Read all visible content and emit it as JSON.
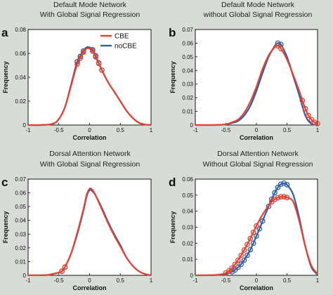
{
  "colors": {
    "cbe": "#e8412e",
    "nocbe": "#2f5fa6",
    "background": "#d8dcd7"
  },
  "chart_data": [
    {
      "type": "line",
      "panel_label": "a",
      "title": [
        "Default Mode Network",
        "With Global Signal Regression"
      ],
      "xlabel": "Correlation",
      "ylabel": "Frequency",
      "xlim": [
        -1,
        1
      ],
      "ylim": [
        0,
        0.08
      ],
      "xticks": [
        "-1",
        "-0.5",
        "0",
        "0.5",
        "1"
      ],
      "yticks": [
        "0",
        "0.02",
        "0.04",
        "0.06",
        "0.08"
      ],
      "legend": {
        "position": "top-right",
        "entries": [
          "CBE",
          "noCBE"
        ]
      },
      "series": [
        {
          "name": "CBE",
          "x": [
            -1,
            -0.8,
            -0.6,
            -0.5,
            -0.4,
            -0.3,
            -0.2,
            -0.1,
            -0.05,
            0,
            0.05,
            0.1,
            0.2,
            0.3,
            0.4,
            0.5,
            0.6,
            0.7,
            0.8,
            0.9,
            1
          ],
          "y": [
            0,
            0,
            0.001,
            0.005,
            0.015,
            0.033,
            0.051,
            0.061,
            0.064,
            0.064,
            0.062,
            0.057,
            0.046,
            0.036,
            0.028,
            0.02,
            0.012,
            0.006,
            0.002,
            0.0005,
            0
          ],
          "markers_x": [
            -0.2,
            -0.15,
            -0.1,
            0.05,
            0.1,
            0.15,
            0.2
          ]
        },
        {
          "name": "noCBE",
          "x": [
            -1,
            -0.8,
            -0.6,
            -0.5,
            -0.4,
            -0.3,
            -0.2,
            -0.1,
            -0.05,
            0,
            0.05,
            0.1,
            0.2,
            0.3,
            0.4,
            0.5,
            0.6,
            0.7,
            0.8,
            0.9,
            1
          ],
          "y": [
            0,
            0,
            0.001,
            0.005,
            0.015,
            0.034,
            0.053,
            0.062,
            0.065,
            0.065,
            0.063,
            0.058,
            0.046,
            0.036,
            0.028,
            0.02,
            0.012,
            0.006,
            0.002,
            0.0005,
            0
          ],
          "markers_x": [
            -0.2,
            -0.15,
            -0.1,
            0.05,
            0.1,
            0.15,
            0.2
          ]
        }
      ]
    },
    {
      "type": "line",
      "panel_label": "b",
      "title": [
        "Default Mode Network",
        "without Global Signal Regression"
      ],
      "xlabel": "Correlation",
      "ylabel": "Frequency",
      "xlim": [
        -1,
        1
      ],
      "ylim": [
        0,
        0.07
      ],
      "xticks": [
        "-1",
        "-0.5",
        "0",
        "0.5",
        "1"
      ],
      "yticks": [
        "0",
        "0.01",
        "0.02",
        "0.03",
        "0.04",
        "0.05",
        "0.06",
        "0.07"
      ],
      "series": [
        {
          "name": "CBE",
          "x": [
            -1,
            -0.7,
            -0.5,
            -0.4,
            -0.3,
            -0.2,
            -0.1,
            0,
            0.1,
            0.2,
            0.3,
            0.35,
            0.4,
            0.5,
            0.6,
            0.7,
            0.75,
            0.8,
            0.85,
            0.9,
            0.95,
            1
          ],
          "y": [
            0,
            0,
            0.0005,
            0.002,
            0.004,
            0.009,
            0.017,
            0.028,
            0.041,
            0.051,
            0.057,
            0.058,
            0.056,
            0.048,
            0.037,
            0.025,
            0.018,
            0.012,
            0.007,
            0.004,
            0.002,
            0.001
          ],
          "markers_x": [
            0.35,
            0.4,
            0.75,
            0.8,
            0.85,
            0.9,
            0.95,
            1
          ]
        },
        {
          "name": "noCBE",
          "x": [
            -1,
            -0.7,
            -0.5,
            -0.4,
            -0.3,
            -0.2,
            -0.1,
            0,
            0.1,
            0.2,
            0.3,
            0.35,
            0.4,
            0.5,
            0.6,
            0.7,
            0.75,
            0.8,
            0.85,
            0.9,
            0.95,
            1
          ],
          "y": [
            0,
            0,
            0.0005,
            0.0015,
            0.003,
            0.007,
            0.014,
            0.025,
            0.038,
            0.05,
            0.058,
            0.06,
            0.059,
            0.05,
            0.036,
            0.022,
            0.014,
            0.007,
            0.003,
            0.001,
            0.0003,
            0
          ],
          "markers_x": [
            0.35,
            0.4
          ]
        }
      ]
    },
    {
      "type": "line",
      "panel_label": "c",
      "title": [
        "Dorsal Attention Network",
        "With Global Signal Regression"
      ],
      "xlabel": "Correlation",
      "ylabel": "Frequency",
      "xlim": [
        -1,
        1
      ],
      "ylim": [
        0,
        0.07
      ],
      "xticks": [
        "-1",
        "-0.5",
        "0",
        "0.5",
        "1"
      ],
      "yticks": [
        "0",
        "0.01",
        "0.02",
        "0.03",
        "0.04",
        "0.05",
        "0.06",
        "0.07"
      ],
      "series": [
        {
          "name": "CBE",
          "x": [
            -1,
            -0.7,
            -0.6,
            -0.5,
            -0.45,
            -0.4,
            -0.3,
            -0.2,
            -0.1,
            -0.05,
            0,
            0.05,
            0.1,
            0.2,
            0.3,
            0.4,
            0.5,
            0.6,
            0.7,
            0.8,
            0.9,
            1
          ],
          "y": [
            0,
            0.0002,
            0.001,
            0.002,
            0.003,
            0.006,
            0.016,
            0.031,
            0.048,
            0.058,
            0.063,
            0.062,
            0.058,
            0.048,
            0.038,
            0.029,
            0.021,
            0.013,
            0.007,
            0.003,
            0.001,
            0
          ],
          "markers_x": [
            -0.45,
            -0.4
          ]
        },
        {
          "name": "noCBE",
          "x": [
            -1,
            -0.7,
            -0.6,
            -0.5,
            -0.45,
            -0.4,
            -0.3,
            -0.2,
            -0.1,
            -0.05,
            0,
            0.05,
            0.1,
            0.2,
            0.3,
            0.4,
            0.5,
            0.6,
            0.7,
            0.8,
            0.9,
            1
          ],
          "y": [
            0,
            0.0002,
            0.001,
            0.002,
            0.003,
            0.006,
            0.016,
            0.03,
            0.047,
            0.057,
            0.062,
            0.061,
            0.058,
            0.049,
            0.039,
            0.03,
            0.022,
            0.013,
            0.007,
            0.003,
            0.001,
            0
          ],
          "markers_x": [
            -0.45,
            -0.4
          ]
        }
      ]
    },
    {
      "type": "line",
      "panel_label": "d",
      "title": [
        "Dorsal Attention Network",
        "Without Global Signal Regression"
      ],
      "xlabel": "Correlation",
      "ylabel": "Frequency",
      "xlim": [
        -1,
        1
      ],
      "ylim": [
        0,
        0.06
      ],
      "xticks": [
        "-1",
        "-0.5",
        "0",
        "0.5",
        "1"
      ],
      "yticks": [
        "0",
        "0.01",
        "0.02",
        "0.03",
        "0.04",
        "0.05",
        "0.06"
      ],
      "series": [
        {
          "name": "CBE",
          "x": [
            -1,
            -0.7,
            -0.55,
            -0.5,
            -0.45,
            -0.4,
            -0.35,
            -0.3,
            -0.25,
            -0.2,
            -0.15,
            -0.1,
            -0.05,
            0,
            0.05,
            0.1,
            0.15,
            0.2,
            0.25,
            0.3,
            0.35,
            0.4,
            0.45,
            0.5,
            0.6,
            0.7,
            0.8,
            0.9,
            1
          ],
          "y": [
            0,
            0.0002,
            0.0008,
            0.0015,
            0.0028,
            0.0045,
            0.0068,
            0.0095,
            0.0125,
            0.0158,
            0.0193,
            0.023,
            0.0268,
            0.0308,
            0.0345,
            0.0378,
            0.0408,
            0.0435,
            0.0458,
            0.0474,
            0.0484,
            0.049,
            0.049,
            0.0485,
            0.046,
            0.034,
            0.018,
            0.006,
            0.001
          ],
          "markers_x": [
            -0.5,
            -0.45,
            -0.4,
            -0.35,
            -0.3,
            -0.25,
            -0.2,
            -0.15,
            -0.1,
            -0.05,
            0,
            0.25,
            0.3,
            0.35,
            0.4,
            0.45,
            0.5
          ]
        },
        {
          "name": "noCBE",
          "x": [
            -1,
            -0.7,
            -0.55,
            -0.5,
            -0.45,
            -0.4,
            -0.35,
            -0.3,
            -0.25,
            -0.2,
            -0.15,
            -0.1,
            -0.05,
            0,
            0.05,
            0.1,
            0.15,
            0.2,
            0.25,
            0.3,
            0.35,
            0.4,
            0.45,
            0.5,
            0.6,
            0.7,
            0.8,
            0.9,
            1
          ],
          "y": [
            0,
            0.0001,
            0.0004,
            0.0008,
            0.0014,
            0.0022,
            0.0034,
            0.005,
            0.007,
            0.0095,
            0.0125,
            0.016,
            0.02,
            0.0245,
            0.029,
            0.0338,
            0.0385,
            0.043,
            0.0475,
            0.0515,
            0.0548,
            0.0568,
            0.0575,
            0.0565,
            0.0505,
            0.036,
            0.018,
            0.005,
            0.0005
          ],
          "markers_x": [
            -0.4,
            -0.35,
            -0.3,
            -0.25,
            -0.2,
            -0.15,
            -0.1,
            -0.05,
            0,
            0.05,
            0.1,
            0.2,
            0.25,
            0.3,
            0.35,
            0.4,
            0.45,
            0.5
          ]
        }
      ]
    }
  ]
}
